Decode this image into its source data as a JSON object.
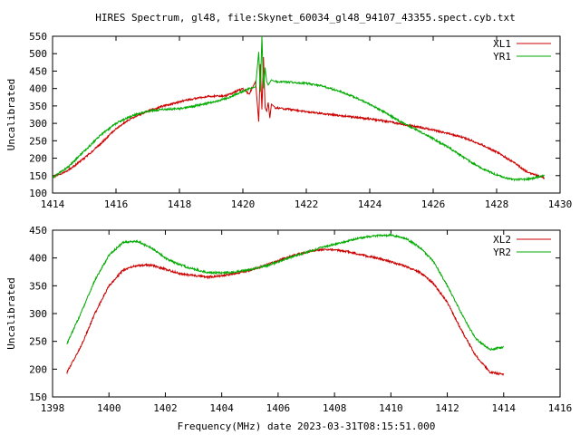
{
  "title": "HIRES Spectrum, gl48, file:Skynet_60034_gl48_94107_43355.spect.cyb.txt",
  "xlabel": "Frequency(MHz) date 2023-03-31T08:15:51.000",
  "colors": {
    "red": "#cc0000",
    "green": "#00aa00",
    "axis": "#000000"
  },
  "chart_data": [
    {
      "type": "line",
      "ylabel": "Uncalibrated",
      "xlim": [
        1414,
        1430
      ],
      "ylim": [
        100,
        550
      ],
      "xticks": [
        1414,
        1416,
        1418,
        1420,
        1422,
        1424,
        1426,
        1428,
        1430
      ],
      "yticks": [
        100,
        150,
        200,
        250,
        300,
        350,
        400,
        450,
        500,
        550
      ],
      "legend_position": "top-right",
      "series": [
        {
          "name": "XL1",
          "color": "red",
          "x": [
            1414.0,
            1414.5,
            1415.0,
            1415.5,
            1416.0,
            1416.5,
            1417.0,
            1417.5,
            1418.0,
            1418.5,
            1419.0,
            1419.5,
            1420.0,
            1420.2,
            1420.4,
            1420.5,
            1420.55,
            1420.6,
            1420.65,
            1420.7,
            1420.75,
            1420.8,
            1420.85,
            1420.9,
            1421.0,
            1421.5,
            1422.0,
            1422.5,
            1423.0,
            1423.5,
            1424.0,
            1424.5,
            1425.0,
            1425.5,
            1426.0,
            1426.5,
            1427.0,
            1427.5,
            1428.0,
            1428.5,
            1429.0,
            1429.5
          ],
          "y": [
            145,
            165,
            200,
            240,
            285,
            315,
            335,
            350,
            362,
            372,
            378,
            380,
            400,
            385,
            420,
            305,
            470,
            340,
            490,
            345,
            335,
            360,
            315,
            355,
            345,
            340,
            333,
            328,
            323,
            318,
            313,
            306,
            298,
            290,
            281,
            270,
            258,
            240,
            218,
            190,
            158,
            144
          ]
        },
        {
          "name": "YR1",
          "color": "green",
          "x": [
            1414.0,
            1414.5,
            1415.0,
            1415.5,
            1416.0,
            1416.5,
            1417.0,
            1417.5,
            1418.0,
            1418.5,
            1419.0,
            1419.5,
            1420.0,
            1420.2,
            1420.4,
            1420.5,
            1420.55,
            1420.6,
            1420.65,
            1420.7,
            1420.75,
            1420.8,
            1420.9,
            1421.0,
            1421.5,
            1422.0,
            1422.5,
            1423.0,
            1423.5,
            1424.0,
            1424.5,
            1425.0,
            1425.5,
            1426.0,
            1426.5,
            1427.0,
            1427.5,
            1428.0,
            1428.5,
            1429.0,
            1429.5
          ],
          "y": [
            145,
            175,
            220,
            265,
            300,
            322,
            335,
            340,
            342,
            350,
            360,
            372,
            392,
            400,
            405,
            505,
            390,
            550,
            400,
            460,
            420,
            410,
            425,
            420,
            418,
            415,
            407,
            393,
            376,
            355,
            330,
            303,
            280,
            256,
            230,
            200,
            172,
            152,
            138,
            140,
            150
          ]
        }
      ]
    },
    {
      "type": "line",
      "ylabel": "Uncalibrated",
      "xlim": [
        1398,
        1416
      ],
      "ylim": [
        150,
        450
      ],
      "xticks": [
        1398,
        1400,
        1402,
        1404,
        1406,
        1408,
        1410,
        1412,
        1414,
        1416
      ],
      "yticks": [
        150,
        200,
        250,
        300,
        350,
        400,
        450
      ],
      "legend_position": "top-right",
      "series": [
        {
          "name": "XL2",
          "color": "red",
          "x": [
            1398.5,
            1399.0,
            1399.5,
            1400.0,
            1400.5,
            1401.0,
            1401.5,
            1402.0,
            1402.5,
            1403.0,
            1403.5,
            1404.0,
            1404.5,
            1405.0,
            1405.5,
            1406.0,
            1406.5,
            1407.0,
            1407.5,
            1408.0,
            1408.5,
            1409.0,
            1409.5,
            1410.0,
            1410.5,
            1411.0,
            1411.5,
            1412.0,
            1412.5,
            1413.0,
            1413.5,
            1414.0
          ],
          "y": [
            193,
            240,
            300,
            350,
            378,
            387,
            387,
            380,
            372,
            368,
            366,
            368,
            372,
            378,
            386,
            395,
            404,
            411,
            415,
            415,
            411,
            405,
            400,
            393,
            385,
            375,
            355,
            320,
            270,
            225,
            195,
            190
          ]
        },
        {
          "name": "YR2",
          "color": "green",
          "x": [
            1398.5,
            1399.0,
            1399.5,
            1400.0,
            1400.5,
            1401.0,
            1401.5,
            1402.0,
            1402.5,
            1403.0,
            1403.5,
            1404.0,
            1404.5,
            1405.0,
            1405.5,
            1406.0,
            1406.5,
            1407.0,
            1407.5,
            1408.0,
            1408.5,
            1409.0,
            1409.5,
            1410.0,
            1410.5,
            1411.0,
            1411.5,
            1412.0,
            1412.5,
            1413.0,
            1413.5,
            1414.0
          ],
          "y": [
            245,
            300,
            360,
            405,
            428,
            430,
            418,
            400,
            388,
            380,
            374,
            373,
            375,
            379,
            385,
            393,
            402,
            410,
            418,
            425,
            431,
            437,
            440,
            441,
            436,
            420,
            395,
            350,
            300,
            255,
            235,
            240
          ]
        }
      ]
    }
  ]
}
